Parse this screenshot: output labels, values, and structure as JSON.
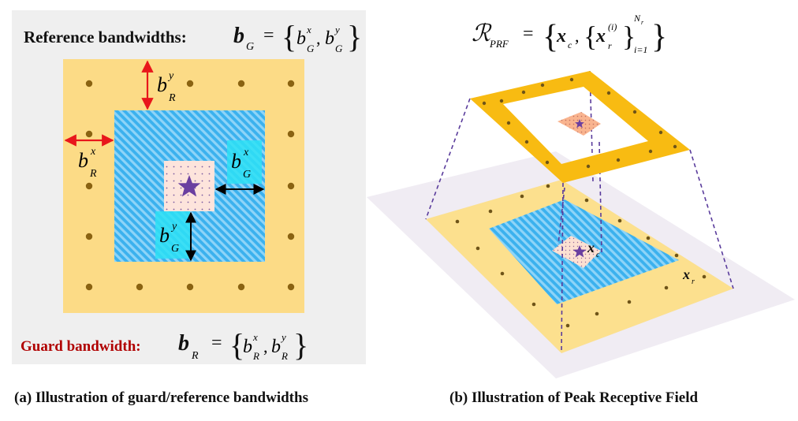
{
  "panel_a": {
    "reference_label": "Reference bandwidths:",
    "guard_label": "Guard bandwidth:",
    "caption": "(a) Illustration of guard/reference bandwidths"
  },
  "panel_b": {
    "caption": "(b) Illustration of Peak Receptive Field"
  },
  "math": {
    "b": "b",
    "G": "G",
    "R": "R",
    "x": "x",
    "y": "y",
    "eq": "=",
    "lbrace": "{",
    "rbrace": "}",
    "comma": ",",
    "calR": "ℛ",
    "PRF": "PRF",
    "c": "c",
    "r": "r",
    "i_paren": "(i)",
    "Nr_N": "N",
    "Nr_r": "r",
    "i_eq_1": "i=1"
  },
  "colors": {
    "background_a": "#efefef",
    "reference_band": "#fcdb86",
    "guard_band": "#2aa8ea",
    "cell": "#fde4dc",
    "peak_star": "#6a3fa0",
    "gold_plate": "#f8bb12",
    "guard_label_red": "#b00000",
    "arrow_red": "#e8161b",
    "dashed_line": "#5a3c9c"
  },
  "icons": {
    "peak": "star-icon",
    "reference_cell": "dot-icon"
  }
}
